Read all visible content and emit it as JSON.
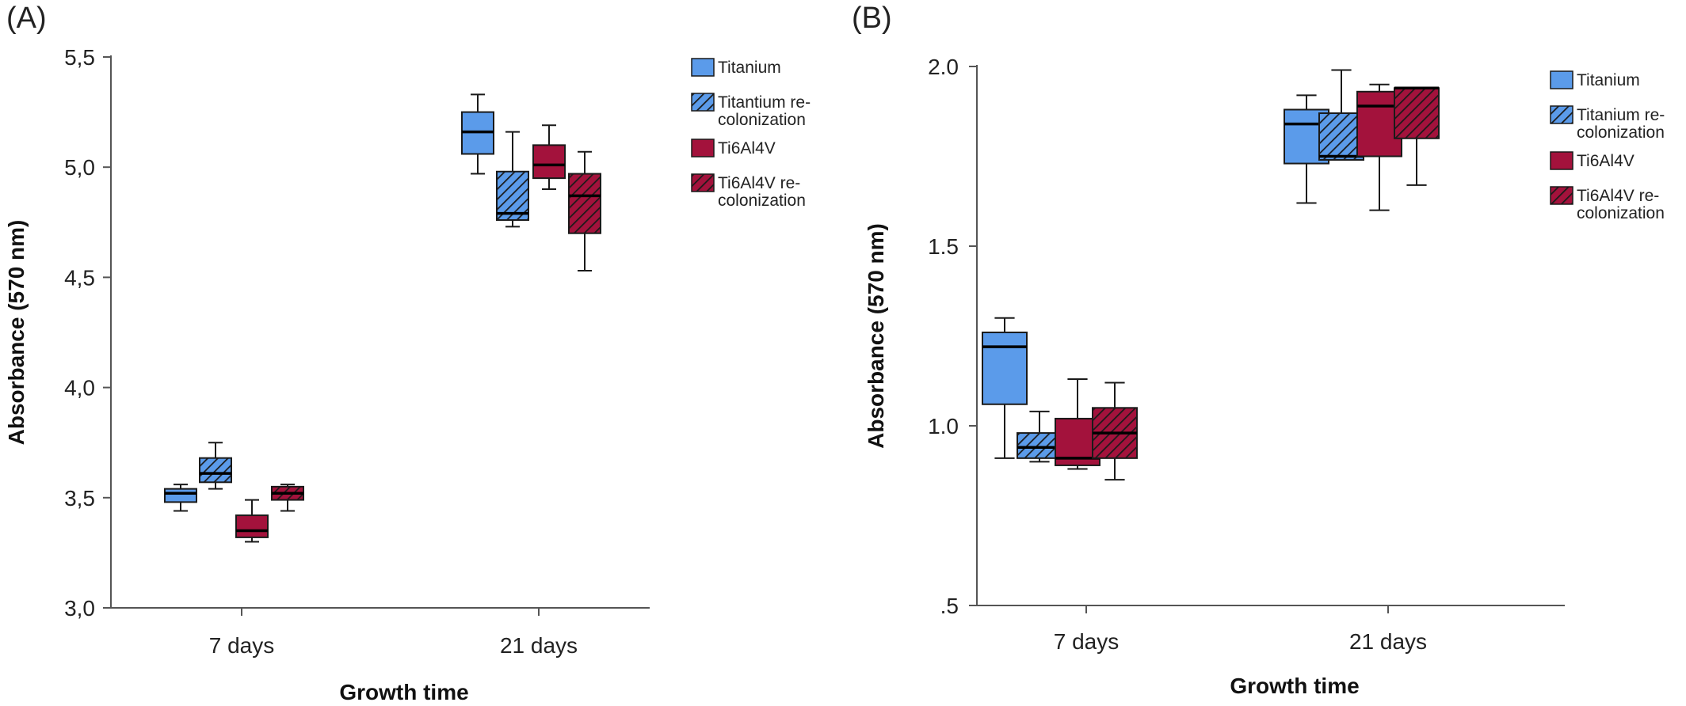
{
  "colors": {
    "blue": "#5b9bea",
    "red": "#a3123c",
    "stroke": "#1a1a1a",
    "axis": "#555555"
  },
  "chart_data": [
    {
      "type": "box",
      "panel_label": "(A)",
      "xlabel": "Growth time",
      "ylabel": "Absorbance (570 nm)",
      "ylim": [
        3.0,
        5.5
      ],
      "yticks": [
        "3,0",
        "3,5",
        "4,0",
        "4,5",
        "5,0",
        "5,5"
      ],
      "categories": [
        "7 days",
        "21 days"
      ],
      "legend_placement": "top-right",
      "series": [
        {
          "name": "Titanium",
          "legend_lines": [
            "Titanium"
          ],
          "color": "blue",
          "hatch": false,
          "boxes": [
            {
              "min": 3.44,
              "q1": 3.48,
              "median": 3.52,
              "q3": 3.54,
              "max": 3.56
            },
            {
              "min": 4.97,
              "q1": 5.06,
              "median": 5.16,
              "q3": 5.25,
              "max": 5.33
            }
          ]
        },
        {
          "name": "Titantium re-colonization",
          "legend_lines": [
            "Titantium re-",
            "colonization"
          ],
          "color": "blue",
          "hatch": true,
          "boxes": [
            {
              "min": 3.54,
              "q1": 3.57,
              "median": 3.61,
              "q3": 3.68,
              "max": 3.75
            },
            {
              "min": 4.73,
              "q1": 4.76,
              "median": 4.79,
              "q3": 4.98,
              "max": 5.16
            }
          ]
        },
        {
          "name": "Ti6Al4V",
          "legend_lines": [
            "Ti6Al4V"
          ],
          "color": "red",
          "hatch": false,
          "boxes": [
            {
              "min": 3.3,
              "q1": 3.32,
              "median": 3.35,
              "q3": 3.42,
              "max": 3.49
            },
            {
              "min": 4.9,
              "q1": 4.95,
              "median": 5.01,
              "q3": 5.1,
              "max": 5.19
            }
          ]
        },
        {
          "name": "Ti6Al4V re-colonization",
          "legend_lines": [
            "Ti6Al4V re-",
            "colonization"
          ],
          "color": "red",
          "hatch": true,
          "boxes": [
            {
              "min": 3.44,
              "q1": 3.49,
              "median": 3.52,
              "q3": 3.55,
              "max": 3.56
            },
            {
              "min": 4.53,
              "q1": 4.7,
              "median": 4.87,
              "q3": 4.97,
              "max": 5.07
            }
          ]
        }
      ]
    },
    {
      "type": "box",
      "panel_label": "(B)",
      "xlabel": "Growth time",
      "ylabel": "Absorbance (570 nm)",
      "ylim": [
        0.5,
        2.0
      ],
      "yticks": [
        ".5",
        "1.0",
        "1.5",
        "2.0"
      ],
      "categories": [
        "7 days",
        "21 days"
      ],
      "legend_placement": "top-right",
      "series": [
        {
          "name": "Titanium",
          "legend_lines": [
            "Titanium"
          ],
          "color": "blue",
          "hatch": false,
          "boxes": [
            {
              "min": 0.91,
              "q1": 1.06,
              "median": 1.22,
              "q3": 1.26,
              "max": 1.3
            },
            {
              "min": 1.62,
              "q1": 1.73,
              "median": 1.84,
              "q3": 1.88,
              "max": 1.92
            }
          ]
        },
        {
          "name": "Titanium re-colonization",
          "legend_lines": [
            "Titanium re-",
            "colonization"
          ],
          "color": "blue",
          "hatch": true,
          "boxes": [
            {
              "min": 0.9,
              "q1": 0.91,
              "median": 0.94,
              "q3": 0.98,
              "max": 1.04
            },
            {
              "min": 1.74,
              "q1": 1.74,
              "median": 1.75,
              "q3": 1.87,
              "max": 1.99
            }
          ]
        },
        {
          "name": "Ti6Al4V",
          "legend_lines": [
            "Ti6Al4V"
          ],
          "color": "red",
          "hatch": false,
          "boxes": [
            {
              "min": 0.88,
              "q1": 0.89,
              "median": 0.91,
              "q3": 1.02,
              "max": 1.13
            },
            {
              "min": 1.6,
              "q1": 1.75,
              "median": 1.89,
              "q3": 1.93,
              "max": 1.95
            }
          ]
        },
        {
          "name": "Ti6Al4V re-colonization",
          "legend_lines": [
            "Ti6Al4V re-",
            "colonization"
          ],
          "color": "red",
          "hatch": true,
          "boxes": [
            {
              "min": 0.85,
              "q1": 0.91,
              "median": 0.98,
              "q3": 1.05,
              "max": 1.12
            },
            {
              "min": 1.67,
              "q1": 1.8,
              "median": 1.94,
              "q3": 1.94,
              "max": 1.94
            }
          ]
        }
      ]
    }
  ]
}
